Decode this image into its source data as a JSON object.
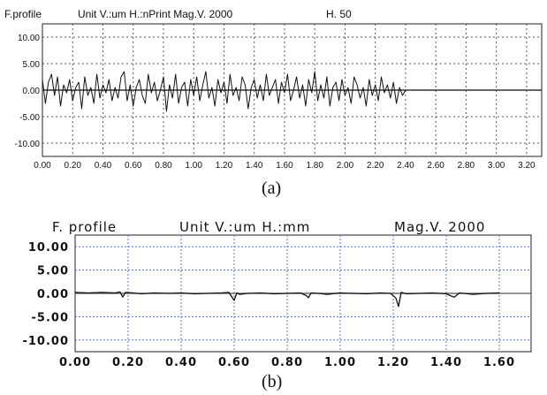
{
  "chart_data": [
    {
      "type": "line",
      "panel": "(a)",
      "header": [
        "F.profile",
        "Unit V.:um H.:nPrint Mag.V. 2000",
        "H. 50"
      ],
      "ylim": [
        -12.5,
        12.5
      ],
      "xlim": [
        0,
        3.3
      ],
      "yticks": [
        "10.00",
        "5.00",
        "0.00",
        "-5.00",
        "-10.00"
      ],
      "ytick_values": [
        10,
        5,
        0,
        -5,
        -10
      ],
      "xticks": [
        "0.00",
        "0.20",
        "0.40",
        "0.60",
        "0.80",
        "1.00",
        "1.20",
        "1.40",
        "1.60",
        "1.80",
        "2.00",
        "2.20",
        "2.40",
        "2.60",
        "2.80",
        "3.00",
        "3.20"
      ],
      "xtick_values": [
        0,
        0.2,
        0.4,
        0.6,
        0.8,
        1.0,
        1.2,
        1.4,
        1.6,
        1.8,
        2.0,
        2.2,
        2.4,
        2.6,
        2.8,
        3.0,
        3.2
      ],
      "grid": true,
      "series": [
        {
          "x": [
            0.0,
            0.02,
            0.04,
            0.06,
            0.08,
            0.1,
            0.12,
            0.14,
            0.16,
            0.18,
            0.2,
            0.22,
            0.24,
            0.26,
            0.28,
            0.3,
            0.32,
            0.34,
            0.36,
            0.38,
            0.4,
            0.42,
            0.44,
            0.46,
            0.48,
            0.5,
            0.52,
            0.54,
            0.56,
            0.58,
            0.6,
            0.62,
            0.64,
            0.66,
            0.68,
            0.7,
            0.72,
            0.74,
            0.76,
            0.78,
            0.8,
            0.82,
            0.84,
            0.86,
            0.88,
            0.9,
            0.92,
            0.94,
            0.96,
            0.98,
            1.0,
            1.02,
            1.04,
            1.06,
            1.08,
            1.1,
            1.12,
            1.14,
            1.16,
            1.18,
            1.2,
            1.22,
            1.24,
            1.26,
            1.28,
            1.3,
            1.32,
            1.34,
            1.36,
            1.38,
            1.4,
            1.42,
            1.44,
            1.46,
            1.48,
            1.5,
            1.52,
            1.54,
            1.56,
            1.58,
            1.6,
            1.62,
            1.64,
            1.66,
            1.68,
            1.7,
            1.72,
            1.74,
            1.76,
            1.78,
            1.8,
            1.82,
            1.84,
            1.86,
            1.88,
            1.9,
            1.92,
            1.94,
            1.96,
            1.98,
            2.0,
            2.02,
            2.04,
            2.06,
            2.08,
            2.1,
            2.12,
            2.14,
            2.16,
            2.18,
            2.2,
            2.22,
            2.24,
            2.26,
            2.28,
            2.3,
            2.32,
            2.34,
            2.36,
            2.38,
            2.4
          ],
          "y": [
            2.0,
            -2.5,
            1.5,
            3.0,
            -1.0,
            2.5,
            -3.0,
            1.0,
            -0.5,
            2.0,
            -2.0,
            0.5,
            1.5,
            -3.5,
            2.5,
            -1.0,
            0.5,
            -2.5,
            3.0,
            -1.5,
            1.0,
            -0.5,
            2.0,
            -2.0,
            0.5,
            -1.5,
            2.5,
            3.5,
            -2.0,
            1.0,
            -3.0,
            0.5,
            2.0,
            -1.0,
            -2.5,
            3.0,
            -0.5,
            1.5,
            -2.0,
            0.0,
            2.5,
            -4.0,
            1.0,
            -1.5,
            3.0,
            -2.5,
            0.5,
            1.5,
            -3.0,
            2.0,
            -1.0,
            2.5,
            -2.0,
            1.0,
            3.5,
            -1.5,
            0.5,
            -3.0,
            2.0,
            -0.5,
            1.5,
            -2.5,
            3.0,
            -1.0,
            0.5,
            -2.0,
            2.5,
            1.0,
            -3.5,
            0.5,
            2.0,
            -1.5,
            1.0,
            -2.0,
            3.0,
            -1.0,
            0.5,
            2.0,
            -2.5,
            1.5,
            -0.5,
            3.0,
            -2.0,
            0.0,
            2.5,
            -1.5,
            1.0,
            -3.0,
            2.0,
            -0.5,
            3.5,
            -2.0,
            1.0,
            -1.5,
            2.5,
            -3.0,
            0.5,
            1.5,
            -2.0,
            2.0,
            -1.0,
            0.5,
            -2.5,
            2.5,
            1.0,
            -1.5,
            0.5,
            -3.0,
            2.0,
            -1.0,
            1.0,
            -2.0,
            2.5,
            -0.5,
            1.0,
            -1.5,
            1.5,
            -2.5,
            0.5,
            -1.0,
            0.0
          ]
        }
      ]
    },
    {
      "type": "line",
      "panel": "(b)",
      "header": [
        "F. profile",
        "Unit V.:um H.:mm",
        "Mag.V. 2000"
      ],
      "ylim": [
        -12.5,
        12.5
      ],
      "xlim": [
        0,
        1.72
      ],
      "yticks": [
        "10.00",
        "5.00",
        "0.00",
        "-5.00",
        "-10.00"
      ],
      "ytick_values": [
        10,
        5,
        0,
        -5,
        -10
      ],
      "xticks": [
        "0.00",
        "0.20",
        "0.40",
        "0.60",
        "0.80",
        "1.00",
        "1.20",
        "1.40",
        "1.60"
      ],
      "xtick_values": [
        0,
        0.2,
        0.4,
        0.6,
        0.8,
        1.0,
        1.2,
        1.4,
        1.6
      ],
      "grid": true,
      "series": [
        {
          "x": [
            0.0,
            0.05,
            0.1,
            0.15,
            0.17,
            0.18,
            0.19,
            0.22,
            0.25,
            0.3,
            0.35,
            0.4,
            0.45,
            0.5,
            0.55,
            0.58,
            0.6,
            0.61,
            0.62,
            0.65,
            0.7,
            0.75,
            0.8,
            0.85,
            0.87,
            0.88,
            0.89,
            0.92,
            0.95,
            1.0,
            1.05,
            1.1,
            1.15,
            1.19,
            1.21,
            1.22,
            1.23,
            1.25,
            1.3,
            1.35,
            1.4,
            1.42,
            1.43,
            1.45,
            1.5,
            1.55,
            1.6
          ],
          "y": [
            0.2,
            0.1,
            0.2,
            0.1,
            0.3,
            -0.8,
            0.2,
            0.1,
            -0.1,
            0.1,
            0.0,
            0.1,
            -0.1,
            0.0,
            0.1,
            0.2,
            -1.5,
            0.1,
            -0.2,
            0.0,
            0.1,
            -0.1,
            0.0,
            0.1,
            -0.4,
            -0.9,
            0.1,
            0.0,
            -0.2,
            0.1,
            0.0,
            -0.1,
            0.1,
            0.0,
            -1.0,
            -2.8,
            0.2,
            -0.1,
            0.0,
            0.1,
            -0.1,
            -0.6,
            -0.8,
            0.1,
            -0.2,
            0.0,
            0.1
          ]
        }
      ]
    }
  ],
  "captions": [
    "(a)",
    "(b)"
  ]
}
